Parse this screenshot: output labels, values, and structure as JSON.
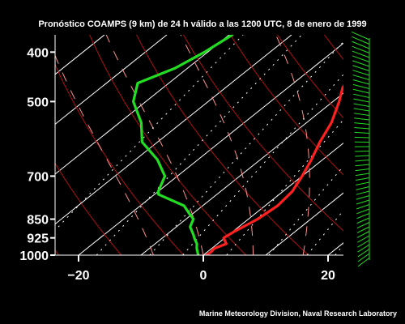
{
  "chart_data": {
    "type": "line",
    "title": "Pronóstico COAMPS (9 km) de 24 h válido a las 1200 UTC, 8 de enero de 1999",
    "credit": "Marine Meteorology Division, Naval Research Laboratory",
    "xlabel": "",
    "ylabel": "",
    "y_scale": "log-pressure",
    "y_ticks": [
      400,
      500,
      700,
      850,
      925,
      1000
    ],
    "y_tick_labels": [
      "400",
      "500",
      "700",
      "850",
      "925",
      "1000"
    ],
    "x_ticks": [
      -20,
      0,
      20
    ],
    "x_tick_labels": [
      "−20",
      "0",
      "20"
    ],
    "xlim": [
      -23,
      22.4
    ],
    "ylim": [
      1000,
      370
    ],
    "colors": {
      "background": "#000000",
      "temperature": "#ff2020",
      "dewpoint": "#22dd22",
      "isotherm": "#ffffff",
      "dry_adiabat": "#b01010",
      "mixing_ratio": "#ffffff",
      "moist_adiabat": "#ff9090",
      "wind_barbs": "#22dd22"
    },
    "series": [
      {
        "key": "temperature",
        "pressure": [
          370,
          400,
          430,
          470,
          500,
          550,
          600,
          650,
          700,
          750,
          800,
          850,
          900,
          925,
          950,
          970,
          985,
          1000
        ],
        "temperature": [
          -17.5,
          -14.2,
          -13.0,
          -11.2,
          -9.0,
          -6.0,
          -4.0,
          -1.8,
          0.0,
          1.5,
          2.0,
          1.5,
          0.2,
          -0.2,
          1.4,
          0.4,
          0.6,
          0.5
        ]
      },
      {
        "key": "dewpoint",
        "pressure": [
          370,
          400,
          430,
          460,
          500,
          550,
          600,
          650,
          700,
          750,
          760,
          800,
          830,
          850,
          880,
          910,
          930,
          950,
          970,
          985,
          1000
        ],
        "dewpoint": [
          -39.5,
          -40.5,
          -42.0,
          -45.0,
          -42.0,
          -36.5,
          -32.5,
          -26.5,
          -22.0,
          -20.0,
          -19.4,
          -13.0,
          -10.5,
          -8.8,
          -7.8,
          -5.8,
          -4.6,
          -3.3,
          -2.4,
          -1.6,
          -0.8
        ]
      }
    ]
  }
}
